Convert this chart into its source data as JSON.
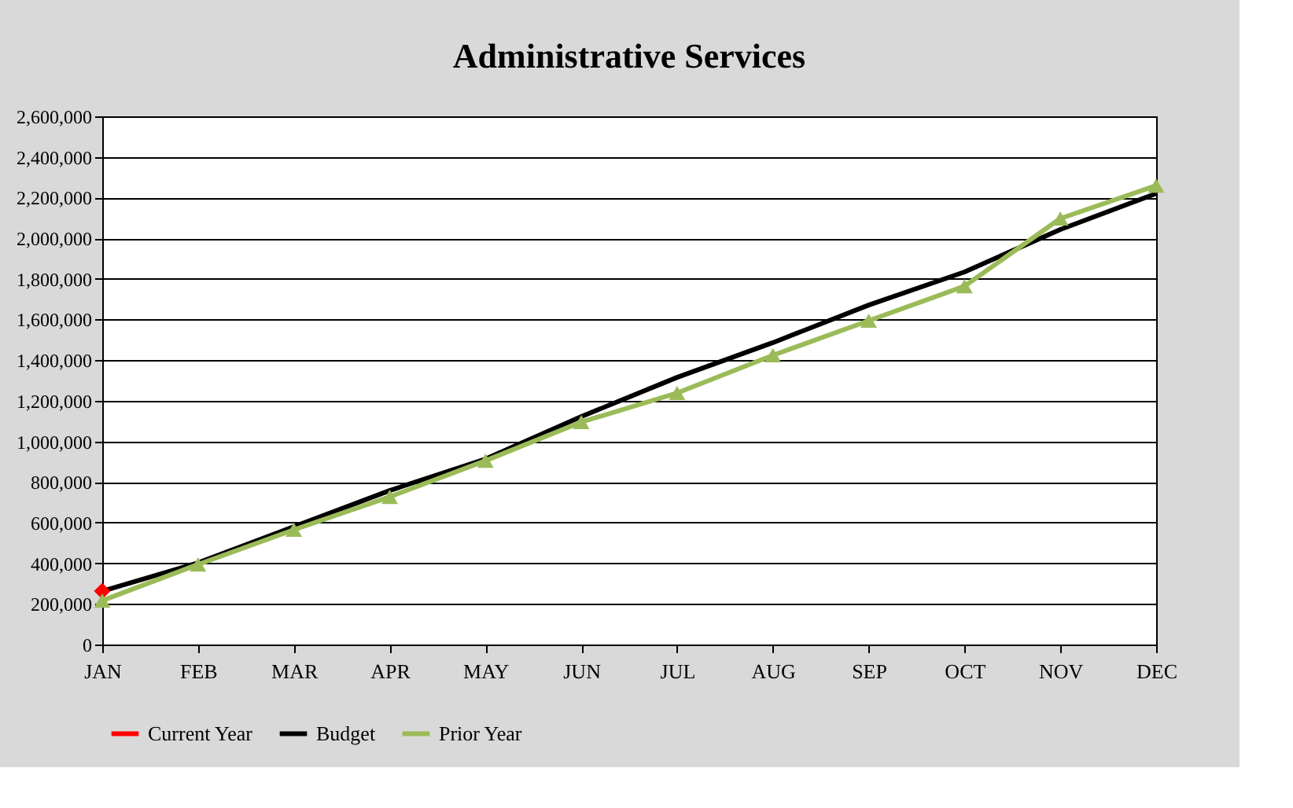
{
  "chart_data": {
    "type": "line",
    "title": "Administrative Services",
    "categories": [
      "JAN",
      "FEB",
      "MAR",
      "APR",
      "MAY",
      "JUN",
      "JUL",
      "AUG",
      "SEP",
      "OCT",
      "NOV",
      "DEC"
    ],
    "series": [
      {
        "name": "Current Year",
        "color": "#ff0000",
        "marker": "diamond",
        "values": [
          263000,
          null,
          null,
          null,
          null,
          null,
          null,
          null,
          null,
          null,
          null,
          null
        ]
      },
      {
        "name": "Budget",
        "color": "#000000",
        "marker": "none",
        "values": [
          263000,
          402000,
          580000,
          758000,
          913000,
          1122000,
          1315000,
          1486000,
          1671000,
          1834000,
          2043000,
          2220000
        ]
      },
      {
        "name": "Prior Year",
        "color": "#9bbb59",
        "marker": "triangle",
        "values": [
          216000,
          394000,
          565000,
          727000,
          905000,
          1095000,
          1238000,
          1424000,
          1594000,
          1764000,
          2097000,
          2259000
        ]
      }
    ],
    "ylim": [
      0,
      2600000
    ],
    "yticks": [
      0,
      {
        "value": 200000,
        "label": "200,000"
      },
      {
        "value": 400000,
        "label": "400,000"
      },
      {
        "value": 600000,
        "label": "600,000"
      },
      {
        "value": 800000,
        "label": "800,000"
      },
      {
        "value": 1000000,
        "label": "1,000,000"
      },
      {
        "value": 1200000,
        "label": "1,200,000"
      },
      {
        "value": 1400000,
        "label": "1,400,000"
      },
      {
        "value": 1600000,
        "label": "1,600,000"
      },
      {
        "value": 1800000,
        "label": "1,800,000"
      },
      {
        "value": 2000000,
        "label": "2,000,000"
      },
      {
        "value": 2200000,
        "label": "2,200,000"
      },
      {
        "value": 2400000,
        "label": "2,400,000"
      },
      {
        "value": 2600000,
        "label": "2,600,000"
      }
    ],
    "grid": "y",
    "legend": "bottom",
    "line_style": "solid"
  }
}
